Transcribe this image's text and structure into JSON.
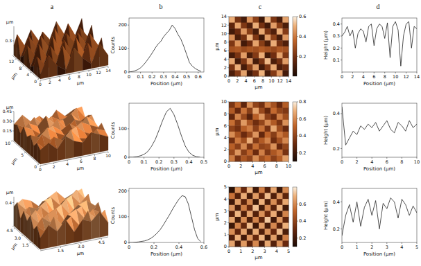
{
  "panel_labels": [
    "a",
    "b",
    "c",
    "d"
  ],
  "chart_data": [
    {
      "type": "surface3d",
      "xlabel": "μm",
      "ylabel": "μm",
      "zlabel": "μm",
      "xlim": [
        0,
        14
      ],
      "xticks": [
        0,
        2,
        4,
        6,
        8,
        10,
        12,
        14
      ],
      "ylim": [
        0,
        14
      ],
      "yticks": [
        0,
        4,
        8,
        12
      ],
      "zlim": [
        0,
        0.6
      ],
      "zticks": [
        0.3
      ],
      "cells": [
        [
          0.1,
          0.45,
          0.2,
          0.08,
          0.5,
          0.25,
          0.1,
          0.48,
          0.2
        ],
        [
          0.4,
          0.18,
          0.06,
          0.52,
          0.22,
          0.09,
          0.46,
          0.18,
          0.07
        ],
        [
          0.15,
          0.05,
          0.48,
          0.2,
          0.08,
          0.55,
          0.2,
          0.06,
          0.44
        ],
        [
          0.06,
          0.5,
          0.18,
          0.07,
          0.47,
          0.16,
          0.08,
          0.5,
          0.22
        ],
        [
          0.45,
          0.2,
          0.08,
          0.53,
          0.19,
          0.07,
          0.49,
          0.21,
          0.09
        ],
        [
          0.18,
          0.07,
          0.51,
          0.22,
          0.06,
          0.46,
          0.23,
          0.08,
          0.52
        ],
        [
          0.08,
          0.47,
          0.2,
          0.09,
          0.54,
          0.18,
          0.06,
          0.45,
          0.2
        ],
        [
          0.49,
          0.19,
          0.07,
          0.44,
          0.21,
          0.08,
          0.5,
          0.17,
          0.06
        ],
        [
          0.2,
          0.06,
          0.46,
          0.18,
          0.08,
          0.52,
          0.2,
          0.07,
          0.48
        ]
      ]
    },
    {
      "type": "line",
      "xlabel": "Position (μm)",
      "ylabel": "Counts",
      "color": "#222222",
      "xlim": [
        0,
        0.65
      ],
      "xticks": [
        0,
        0.1,
        0.2,
        0.3,
        0.4,
        0.5,
        0.6
      ],
      "ylim": [
        0,
        230
      ],
      "yticks": [
        0,
        100,
        200
      ],
      "x": [
        0,
        0.025,
        0.05,
        0.075,
        0.1,
        0.125,
        0.15,
        0.175,
        0.2,
        0.225,
        0.25,
        0.275,
        0.3,
        0.325,
        0.35,
        0.375,
        0.4,
        0.425,
        0.45,
        0.475,
        0.5,
        0.525,
        0.55,
        0.575,
        0.6,
        0.625
      ],
      "values": [
        0,
        2,
        5,
        10,
        18,
        30,
        45,
        62,
        80,
        100,
        118,
        130,
        150,
        165,
        178,
        200,
        185,
        160,
        140,
        110,
        75,
        40,
        25,
        15,
        8,
        3
      ]
    },
    {
      "type": "heatmap",
      "xlabel": "μm",
      "ylabel": "μm",
      "xlim": [
        0,
        14
      ],
      "xticks": [
        0,
        2,
        4,
        6,
        8,
        10,
        12,
        14
      ],
      "ylim": [
        0,
        14
      ],
      "yticks": [
        0,
        2,
        4,
        6,
        8,
        10,
        12,
        14
      ],
      "color_range": [
        0,
        0.6
      ],
      "color_ticks": [
        0.2,
        0.4,
        0.6
      ],
      "cells": [
        [
          0.5,
          0.2,
          0.1,
          0.45,
          0.25,
          0.08,
          0.52,
          0.22,
          0.1,
          0.48
        ],
        [
          0.15,
          0.48,
          0.22,
          0.12,
          0.5,
          0.2,
          0.09,
          0.47,
          0.24,
          0.11
        ],
        [
          0.09,
          0.18,
          0.46,
          0.24,
          0.1,
          0.49,
          0.21,
          0.12,
          0.5,
          0.23
        ],
        [
          0.44,
          0.11,
          0.2,
          0.51,
          0.22,
          0.08,
          0.47,
          0.25,
          0.1,
          0.46
        ],
        [
          0.22,
          0.45,
          0.09,
          0.18,
          0.48,
          0.24,
          0.11,
          0.5,
          0.2,
          0.12
        ],
        [
          0.3,
          0.32,
          0.28,
          0.31,
          0.29,
          0.33,
          0.3,
          0.27,
          0.32,
          0.3
        ],
        [
          0.1,
          0.21,
          0.47,
          0.11,
          0.23,
          0.5,
          0.09,
          0.19,
          0.48,
          0.22
        ],
        [
          0.49,
          0.09,
          0.22,
          0.46,
          0.1,
          0.21,
          0.52,
          0.11,
          0.2,
          0.47
        ],
        [
          0.21,
          0.5,
          0.1,
          0.24,
          0.47,
          0.09,
          0.22,
          0.49,
          0.12,
          0.18
        ],
        [
          0.11,
          0.23,
          0.48,
          0.09,
          0.2,
          0.51,
          0.1,
          0.23,
          0.46,
          0.09
        ]
      ]
    },
    {
      "type": "line",
      "xlabel": "Position (μm)",
      "ylabel": "Height (μm)",
      "color": "#222222",
      "xlim": [
        0,
        14
      ],
      "xticks": [
        0,
        2,
        4,
        6,
        8,
        10,
        12,
        14
      ],
      "ylim": [
        0,
        0.45
      ],
      "yticks": [
        0.1,
        0.2,
        0.3,
        0.4
      ],
      "x": [
        0,
        0.5,
        1,
        1.5,
        2,
        2.5,
        3,
        3.5,
        4,
        4.5,
        5,
        5.5,
        6,
        6.5,
        7,
        7.5,
        8,
        8.5,
        9,
        9.5,
        10,
        10.5,
        11,
        11.5,
        12,
        12.5,
        13,
        13.5,
        14
      ],
      "values": [
        0.3,
        0.33,
        0.38,
        0.3,
        0.35,
        0.2,
        0.32,
        0.36,
        0.34,
        0.25,
        0.38,
        0.4,
        0.22,
        0.36,
        0.4,
        0.38,
        0.28,
        0.41,
        0.12,
        0.38,
        0.42,
        0.35,
        0.05,
        0.3,
        0.4,
        0.42,
        0.2,
        0.38,
        0.36
      ]
    },
    {
      "type": "surface3d",
      "xlabel": "μm",
      "ylabel": "μm",
      "zlabel": "μm",
      "xlim": [
        0,
        10
      ],
      "xticks": [
        0,
        2,
        4,
        6,
        8,
        10
      ],
      "ylim": [
        0,
        10
      ],
      "yticks": [
        0,
        5,
        10
      ],
      "zlim": [
        0,
        0.45
      ],
      "zticks": [
        0.15,
        {
          "value": 0.3,
          "label": "0.30"
        },
        0.45
      ],
      "cells": [
        [
          0.22,
          0.3,
          0.18,
          0.35,
          0.25,
          0.2,
          0.33,
          0.27,
          0.21
        ],
        [
          0.28,
          0.16,
          0.32,
          0.24,
          0.38,
          0.22,
          0.19,
          0.31,
          0.26
        ],
        [
          0.19,
          0.34,
          0.23,
          0.17,
          0.29,
          0.36,
          0.24,
          0.18,
          0.33
        ],
        [
          0.31,
          0.25,
          0.37,
          0.27,
          0.2,
          0.26,
          0.35,
          0.28,
          0.22
        ],
        [
          0.24,
          0.2,
          0.29,
          0.33,
          0.23,
          0.31,
          0.21,
          0.37,
          0.25
        ],
        [
          0.35,
          0.28,
          0.18,
          0.25,
          0.36,
          0.19,
          0.3,
          0.24,
          0.32
        ],
        [
          0.2,
          0.33,
          0.26,
          0.39,
          0.24,
          0.28,
          0.34,
          0.2,
          0.27
        ],
        [
          0.29,
          0.22,
          0.35,
          0.21,
          0.31,
          0.23,
          0.25,
          0.36,
          0.19
        ],
        [
          0.25,
          0.37,
          0.24,
          0.3,
          0.18,
          0.34,
          0.22,
          0.29,
          0.31
        ]
      ]
    },
    {
      "type": "line",
      "xlabel": "Position (μm)",
      "ylabel": "Counts",
      "color": "#222222",
      "xlim": [
        0,
        0.5
      ],
      "xticks": [
        0,
        0.1,
        0.2,
        0.3,
        0.4,
        0.5
      ],
      "ylim": [
        0,
        190
      ],
      "yticks": [
        0,
        100
      ],
      "x": [
        0,
        0.025,
        0.05,
        0.075,
        0.1,
        0.125,
        0.15,
        0.175,
        0.2,
        0.225,
        0.25,
        0.275,
        0.3,
        0.325,
        0.35,
        0.375,
        0.4,
        0.425,
        0.45,
        0.475
      ],
      "values": [
        0,
        0,
        2,
        5,
        10,
        20,
        38,
        62,
        95,
        130,
        160,
        172,
        150,
        115,
        75,
        40,
        18,
        7,
        2,
        0
      ]
    },
    {
      "type": "heatmap",
      "xlabel": "μm",
      "ylabel": "μm",
      "xlim": [
        0,
        10
      ],
      "xticks": [
        0,
        2,
        4,
        6,
        8,
        10
      ],
      "ylim": [
        0,
        10
      ],
      "yticks": [
        0,
        2,
        4,
        6,
        8,
        10
      ],
      "color_range": [
        0.1,
        0.8
      ],
      "color_ticks": [
        0.2,
        0.4,
        0.6,
        0.8
      ],
      "cells": [
        [
          0.35,
          0.52,
          0.28,
          0.61,
          0.4,
          0.33,
          0.57,
          0.45,
          0.3,
          0.49
        ],
        [
          0.48,
          0.3,
          0.55,
          0.38,
          0.66,
          0.42,
          0.29,
          0.53,
          0.41,
          0.36
        ],
        [
          0.29,
          0.59,
          0.42,
          0.26,
          0.5,
          0.63,
          0.39,
          0.31,
          0.58,
          0.44
        ],
        [
          0.54,
          0.37,
          0.64,
          0.46,
          0.32,
          0.41,
          0.6,
          0.48,
          0.35,
          0.62
        ],
        [
          0.4,
          0.33,
          0.49,
          0.57,
          0.39,
          0.55,
          0.34,
          0.67,
          0.43,
          0.3
        ],
        [
          0.61,
          0.46,
          0.31,
          0.42,
          0.63,
          0.29,
          0.51,
          0.38,
          0.56,
          0.47
        ],
        [
          0.33,
          0.56,
          0.44,
          0.68,
          0.37,
          0.48,
          0.59,
          0.32,
          0.45,
          0.6
        ],
        [
          0.5,
          0.39,
          0.6,
          0.35,
          0.54,
          0.4,
          0.43,
          0.62,
          0.3,
          0.41
        ],
        [
          0.42,
          0.63,
          0.38,
          0.51,
          0.31,
          0.58,
          0.36,
          0.47,
          0.55,
          0.34
        ],
        [
          0.57,
          0.34,
          0.47,
          0.4,
          0.61,
          0.44,
          0.52,
          0.39,
          0.49,
          0.65
        ]
      ]
    },
    {
      "type": "line",
      "xlabel": "Position (μm)",
      "ylabel": "Height (μm)",
      "color": "#222222",
      "xlim": [
        0,
        10
      ],
      "xticks": [
        0,
        2,
        4,
        6,
        8,
        10
      ],
      "ylim": [
        0.15,
        0.46
      ],
      "yticks": [
        0.2,
        0.4
      ],
      "x": [
        0,
        0.5,
        1,
        1.5,
        2,
        2.5,
        3,
        3.5,
        4,
        4.5,
        5,
        5.5,
        6,
        6.5,
        7,
        7.5,
        8,
        8.5,
        9,
        9.5,
        10
      ],
      "values": [
        0.44,
        0.22,
        0.26,
        0.3,
        0.28,
        0.33,
        0.31,
        0.34,
        0.32,
        0.35,
        0.3,
        0.33,
        0.36,
        0.31,
        0.29,
        0.35,
        0.33,
        0.3,
        0.36,
        0.32,
        0.34
      ]
    },
    {
      "type": "surface3d",
      "xlabel": "μm",
      "ylabel": "μm",
      "zlabel": "μm",
      "xlim": [
        0,
        5
      ],
      "xticks": [
        1.5,
        {
          "value": 3,
          "label": "3.0"
        },
        4.5
      ],
      "ylim": [
        0,
        5
      ],
      "yticks": [
        1.5,
        {
          "value": 3,
          "label": "3.0"
        },
        4.5
      ],
      "zlim": [
        0,
        0.5
      ],
      "zticks": [
        0.4
      ],
      "cells": [
        [
          0.2,
          0.38,
          0.25,
          0.42,
          0.18,
          0.36,
          0.3,
          0.44,
          0.22
        ],
        [
          0.35,
          0.22,
          0.45,
          0.28,
          0.4,
          0.21,
          0.43,
          0.26,
          0.39
        ],
        [
          0.24,
          0.41,
          0.3,
          0.19,
          0.37,
          0.44,
          0.25,
          0.38,
          0.28
        ],
        [
          0.43,
          0.27,
          0.39,
          0.46,
          0.23,
          0.33,
          0.41,
          0.2,
          0.42
        ],
        [
          0.29,
          0.44,
          0.21,
          0.35,
          0.45,
          0.26,
          0.38,
          0.43,
          0.31
        ],
        [
          0.4,
          0.25,
          0.42,
          0.27,
          0.32,
          0.47,
          0.22,
          0.36,
          0.24
        ],
        [
          0.22,
          0.39,
          0.34,
          0.44,
          0.21,
          0.37,
          0.45,
          0.28,
          0.41
        ],
        [
          0.45,
          0.3,
          0.23,
          0.38,
          0.42,
          0.26,
          0.33,
          0.46,
          0.27
        ],
        [
          0.33,
          0.43,
          0.37,
          0.24,
          0.36,
          0.44,
          0.29,
          0.35,
          0.4
        ]
      ]
    },
    {
      "type": "line",
      "xlabel": "Position (μm)",
      "ylabel": "Counts",
      "color": "#222222",
      "xlim": [
        0,
        0.6
      ],
      "xticks": [
        0,
        0.2,
        0.4,
        0.6
      ],
      "ylim": [
        0,
        210
      ],
      "yticks": [
        0,
        100,
        200
      ],
      "x": [
        0,
        0.025,
        0.05,
        0.075,
        0.1,
        0.125,
        0.15,
        0.175,
        0.2,
        0.225,
        0.25,
        0.275,
        0.3,
        0.325,
        0.35,
        0.375,
        0.4,
        0.425,
        0.45,
        0.475,
        0.5,
        0.525,
        0.55,
        0.575
      ],
      "values": [
        0,
        0,
        1,
        2,
        4,
        6,
        10,
        16,
        25,
        36,
        50,
        68,
        88,
        108,
        130,
        150,
        168,
        182,
        178,
        150,
        100,
        50,
        15,
        3
      ]
    },
    {
      "type": "heatmap",
      "xlabel": "μm",
      "ylabel": "μm",
      "xlim": [
        0,
        5
      ],
      "xticks": [
        0,
        1,
        2,
        3,
        4,
        5
      ],
      "ylim": [
        0,
        5
      ],
      "yticks": [
        0,
        1,
        2,
        3,
        4,
        5
      ],
      "color_range": [
        0.1,
        0.8
      ],
      "color_ticks": [
        0.2,
        0.4,
        0.6
      ],
      "cells": [
        [
          0.15,
          0.62,
          0.3,
          0.7,
          0.2,
          0.58,
          0.25,
          0.66,
          0.18,
          0.6
        ],
        [
          0.55,
          0.25,
          0.68,
          0.22,
          0.64,
          0.28,
          0.71,
          0.24,
          0.63,
          0.27
        ],
        [
          0.2,
          0.65,
          0.27,
          0.6,
          0.19,
          0.69,
          0.23,
          0.61,
          0.29,
          0.67
        ],
        [
          0.63,
          0.22,
          0.58,
          0.3,
          0.72,
          0.21,
          0.6,
          0.26,
          0.7,
          0.2
        ],
        [
          0.26,
          0.7,
          0.24,
          0.66,
          0.25,
          0.62,
          0.31,
          0.68,
          0.22,
          0.59
        ],
        [
          0.67,
          0.21,
          0.61,
          0.23,
          0.59,
          0.27,
          0.73,
          0.2,
          0.64,
          0.28
        ],
        [
          0.19,
          0.59,
          0.29,
          0.71,
          0.2,
          0.65,
          0.22,
          0.6,
          0.26,
          0.69
        ],
        [
          0.61,
          0.28,
          0.66,
          0.21,
          0.68,
          0.24,
          0.62,
          0.3,
          0.71,
          0.23
        ],
        [
          0.24,
          0.69,
          0.2,
          0.63,
          0.29,
          0.7,
          0.19,
          0.65,
          0.21,
          0.58
        ],
        [
          0.66,
          0.23,
          0.64,
          0.27,
          0.6,
          0.22,
          0.67,
          0.25,
          0.62,
          0.3
        ]
      ]
    },
    {
      "type": "line",
      "xlabel": "Position (μm)",
      "ylabel": "Height (μm)",
      "color": "#222222",
      "xlim": [
        0,
        5
      ],
      "xticks": [
        0,
        1,
        2,
        3,
        4,
        5
      ],
      "ylim": [
        0.1,
        0.5
      ],
      "yticks": [
        0.2,
        0.4
      ],
      "x": [
        0,
        0.25,
        0.5,
        0.75,
        1,
        1.25,
        1.5,
        1.75,
        2,
        2.25,
        2.5,
        2.75,
        3,
        3.25,
        3.5,
        3.75,
        4,
        4.25,
        4.5,
        4.75,
        5
      ],
      "values": [
        0.15,
        0.3,
        0.38,
        0.25,
        0.4,
        0.22,
        0.36,
        0.42,
        0.3,
        0.41,
        0.2,
        0.39,
        0.35,
        0.43,
        0.4,
        0.28,
        0.42,
        0.38,
        0.3,
        0.37,
        0.32
      ]
    }
  ]
}
